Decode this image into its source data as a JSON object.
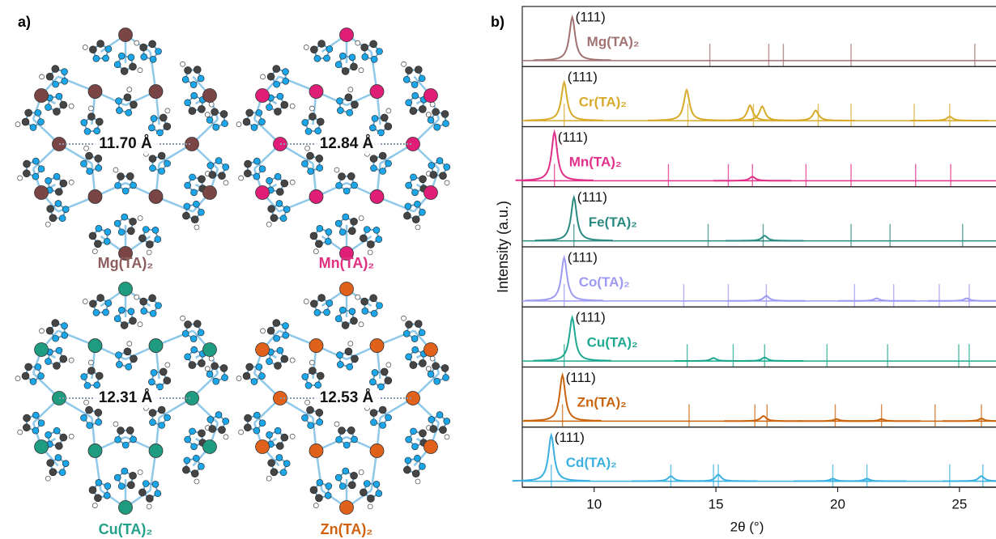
{
  "panel_a": {
    "label": "a)",
    "structures": [
      {
        "name": "Mg(TA)₂",
        "distance": "11.70 Å",
        "color": "#8c5e5e",
        "metal_color": "#7b4545"
      },
      {
        "name": "Mn(TA)₂",
        "distance": "12.84 Å",
        "color": "#e0307f",
        "metal_color": "#e01e78"
      },
      {
        "name": "Cu(TA)₂",
        "distance": "12.31 Å",
        "color": "#22a08a",
        "metal_color": "#1f9c80"
      },
      {
        "name": "Zn(TA)₂",
        "distance": "12.53 Å",
        "color": "#d0620f",
        "metal_color": "#e0621a"
      }
    ]
  },
  "chart_data": {
    "type": "stacked-xrd",
    "panel_label": "b)",
    "xlabel": "2θ (°)",
    "ylabel": "Intensity (a.u.)",
    "xlim": [
      7.05,
      26.5
    ],
    "xticks": [
      10,
      15,
      20,
      25
    ],
    "ylim": [
      0,
      1
    ],
    "series": [
      {
        "name": "Mg(TA)₂",
        "color": "#a07272",
        "peak_label": "(111)",
        "peaks_x": [
          9.1
        ],
        "peaks": [
          0.85
        ],
        "reference_x": [
          14.75,
          17.17,
          17.77,
          20.55,
          25.63
        ]
      },
      {
        "name": "Cr(TA)₂",
        "color": "#d8aa2a",
        "peak_label": "(111)",
        "peaks_x": [
          8.77,
          13.8,
          16.4,
          16.9,
          19.1,
          24.6
        ],
        "peaks": [
          0.75,
          0.6,
          0.3,
          0.28,
          0.2,
          0.08
        ],
        "reference_x": [
          8.77,
          13.85,
          16.54,
          19.2,
          20.55,
          23.14,
          24.6
        ]
      },
      {
        "name": "Mn(TA)₂",
        "color": "#e0308a",
        "peak_label": "(111)",
        "peaks_x": [
          8.37,
          16.5
        ],
        "peaks": [
          0.95,
          0.08
        ],
        "reference_x": [
          8.37,
          13.05,
          15.51,
          16.5,
          18.7,
          20.55,
          23.2,
          24.64
        ]
      },
      {
        "name": "Fe(TA)₂",
        "color": "#2a8a80",
        "peak_label": "(111)",
        "peaks_x": [
          9.17,
          17.0
        ],
        "peaks": [
          0.85,
          0.1
        ],
        "reference_x": [
          9.17,
          14.68,
          16.94,
          20.55,
          22.15,
          25.13
        ]
      },
      {
        "name": "Co(TA)₂",
        "color": "#9d9af2",
        "peak_label": "(111)",
        "peaks_x": [
          8.77,
          17.07,
          21.6,
          25.3
        ],
        "peaks": [
          0.85,
          0.1,
          0.05,
          0.05
        ],
        "reference_x": [
          8.77,
          13.68,
          15.51,
          17.07,
          20.69,
          22.3,
          24.17,
          25.4
        ]
      },
      {
        "name": "Cu(TA)₂",
        "color": "#1fa890",
        "peak_label": "(111)",
        "peaks_x": [
          9.1,
          14.9,
          17.0
        ],
        "peaks": [
          0.85,
          0.06,
          0.07
        ],
        "reference_x": [
          8.77,
          13.82,
          15.71,
          17.0,
          19.56,
          22.05,
          24.97,
          25.4
        ]
      },
      {
        "name": "Zn(TA)₂",
        "color": "#c9650f",
        "peak_label": "(111)",
        "peaks_x": [
          8.7,
          16.95,
          19.95,
          21.8,
          25.9
        ],
        "peaks": [
          0.9,
          0.1,
          0.04,
          0.04,
          0.05
        ],
        "reference_x": [
          8.7,
          13.9,
          16.6,
          17.1,
          19.9,
          21.8,
          24.0,
          25.9
        ]
      },
      {
        "name": "Cd(TA)₂",
        "color": "#3ab0e0",
        "peak_label": "(111)",
        "peaks_x": [
          8.24,
          13.15,
          15.1,
          19.8,
          21.2,
          25.9
        ],
        "peaks": [
          0.9,
          0.1,
          0.13,
          0.05,
          0.05,
          0.1
        ],
        "reference_x": [
          8.24,
          13.15,
          14.9,
          15.1,
          19.8,
          21.2,
          24.6,
          25.96
        ]
      }
    ]
  }
}
